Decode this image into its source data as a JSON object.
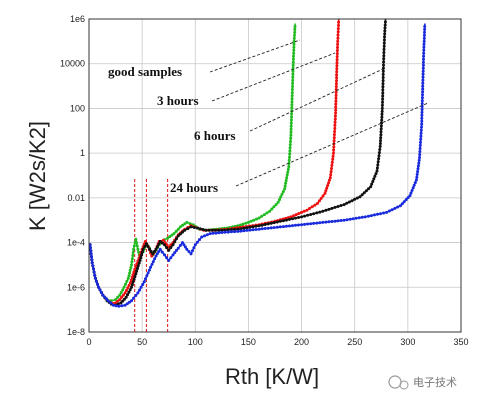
{
  "chart_data": {
    "type": "line",
    "xlabel": "Rth [K/W]",
    "ylabel": "K [W2s/K2]",
    "xlim": [
      0,
      350
    ],
    "ylim_log10": [
      -8,
      6
    ],
    "y_scale": "log",
    "grid": true,
    "x_ticks": [
      "0",
      "50",
      "100",
      "150",
      "200",
      "250",
      "300",
      "350"
    ],
    "y_ticks": [
      "1e-8",
      "1e-6",
      "1e-4",
      "0.01",
      "1",
      "100",
      "10000",
      "1e6"
    ],
    "annotations": [
      "good samples",
      "3 hours",
      "6 hours",
      "24 hours"
    ],
    "vlines_x": [
      43,
      54,
      74
    ],
    "series": [
      {
        "label": "good samples",
        "color": "#22bb22",
        "points": [
          [
            1,
            -4.1
          ],
          [
            3,
            -4.9
          ],
          [
            6,
            -5.6
          ],
          [
            9,
            -6.0
          ],
          [
            13,
            -6.35
          ],
          [
            17,
            -6.55
          ],
          [
            21,
            -6.6
          ],
          [
            25,
            -6.55
          ],
          [
            29,
            -6.35
          ],
          [
            33,
            -6.0
          ],
          [
            37,
            -5.6
          ],
          [
            40,
            -5.0
          ],
          [
            42,
            -4.3
          ],
          [
            44,
            -3.85
          ],
          [
            46,
            -4.3
          ],
          [
            48,
            -4.7
          ],
          [
            51,
            -4.4
          ],
          [
            54,
            -4.05
          ],
          [
            57,
            -4.25
          ],
          [
            60,
            -4.55
          ],
          [
            63,
            -4.35
          ],
          [
            68,
            -3.95
          ],
          [
            74,
            -3.8
          ],
          [
            80,
            -3.6
          ],
          [
            86,
            -3.3
          ],
          [
            92,
            -3.1
          ],
          [
            98,
            -3.2
          ],
          [
            104,
            -3.4
          ],
          [
            110,
            -3.45
          ],
          [
            120,
            -3.4
          ],
          [
            130,
            -3.35
          ],
          [
            140,
            -3.25
          ],
          [
            150,
            -3.1
          ],
          [
            160,
            -2.9
          ],
          [
            170,
            -2.6
          ],
          [
            178,
            -2.2
          ],
          [
            184,
            -1.6
          ],
          [
            188,
            -0.6
          ],
          [
            190,
            0.8
          ],
          [
            191,
            2.3
          ],
          [
            192,
            3.8
          ],
          [
            193,
            5.0
          ],
          [
            194,
            5.8
          ]
        ]
      },
      {
        "label": "3 hours",
        "color": "#ee1111",
        "points": [
          [
            1,
            -4.1
          ],
          [
            3,
            -4.9
          ],
          [
            6,
            -5.6
          ],
          [
            9,
            -6.0
          ],
          [
            13,
            -6.35
          ],
          [
            17,
            -6.6
          ],
          [
            21,
            -6.7
          ],
          [
            25,
            -6.7
          ],
          [
            29,
            -6.55
          ],
          [
            34,
            -6.25
          ],
          [
            39,
            -5.8
          ],
          [
            43,
            -5.2
          ],
          [
            47,
            -4.7
          ],
          [
            50,
            -4.3
          ],
          [
            53,
            -3.95
          ],
          [
            56,
            -4.2
          ],
          [
            59,
            -4.6
          ],
          [
            62,
            -4.4
          ],
          [
            66,
            -3.95
          ],
          [
            70,
            -3.9
          ],
          [
            75,
            -4.2
          ],
          [
            79,
            -4.0
          ],
          [
            84,
            -3.65
          ],
          [
            90,
            -3.4
          ],
          [
            96,
            -3.25
          ],
          [
            102,
            -3.35
          ],
          [
            108,
            -3.45
          ],
          [
            118,
            -3.45
          ],
          [
            130,
            -3.4
          ],
          [
            145,
            -3.3
          ],
          [
            160,
            -3.2
          ],
          [
            175,
            -3.05
          ],
          [
            190,
            -2.85
          ],
          [
            205,
            -2.55
          ],
          [
            215,
            -2.25
          ],
          [
            222,
            -1.8
          ],
          [
            227,
            -1.1
          ],
          [
            230,
            0.0
          ],
          [
            232,
            1.8
          ],
          [
            233,
            3.5
          ],
          [
            234,
            5.0
          ],
          [
            235,
            6.0
          ]
        ]
      },
      {
        "label": "6 hours",
        "color": "#111111",
        "points": [
          [
            1,
            -4.1
          ],
          [
            3,
            -4.9
          ],
          [
            6,
            -5.6
          ],
          [
            9,
            -6.0
          ],
          [
            13,
            -6.35
          ],
          [
            17,
            -6.6
          ],
          [
            21,
            -6.75
          ],
          [
            25,
            -6.8
          ],
          [
            30,
            -6.7
          ],
          [
            35,
            -6.45
          ],
          [
            40,
            -6.0
          ],
          [
            44,
            -5.4
          ],
          [
            48,
            -4.8
          ],
          [
            51,
            -4.3
          ],
          [
            54,
            -4.05
          ],
          [
            57,
            -4.3
          ],
          [
            60,
            -4.5
          ],
          [
            63,
            -4.3
          ],
          [
            67,
            -3.95
          ],
          [
            71,
            -4.1
          ],
          [
            75,
            -4.35
          ],
          [
            79,
            -4.1
          ],
          [
            84,
            -3.7
          ],
          [
            90,
            -3.45
          ],
          [
            96,
            -3.3
          ],
          [
            102,
            -3.35
          ],
          [
            110,
            -3.45
          ],
          [
            125,
            -3.45
          ],
          [
            140,
            -3.4
          ],
          [
            160,
            -3.25
          ],
          [
            180,
            -3.05
          ],
          [
            200,
            -2.85
          ],
          [
            220,
            -2.6
          ],
          [
            240,
            -2.3
          ],
          [
            255,
            -1.95
          ],
          [
            265,
            -1.5
          ],
          [
            271,
            -0.8
          ],
          [
            274,
            0.3
          ],
          [
            276,
            2.0
          ],
          [
            277,
            3.8
          ],
          [
            278,
            5.2
          ],
          [
            279,
            6.0
          ]
        ]
      },
      {
        "label": "24 hours",
        "color": "#1a2bdd",
        "points": [
          [
            1,
            -4.1
          ],
          [
            3,
            -4.9
          ],
          [
            6,
            -5.6
          ],
          [
            9,
            -6.0
          ],
          [
            13,
            -6.35
          ],
          [
            18,
            -6.6
          ],
          [
            23,
            -6.8
          ],
          [
            28,
            -6.85
          ],
          [
            34,
            -6.8
          ],
          [
            40,
            -6.6
          ],
          [
            46,
            -6.25
          ],
          [
            52,
            -5.75
          ],
          [
            58,
            -5.1
          ],
          [
            63,
            -4.6
          ],
          [
            67,
            -4.3
          ],
          [
            71,
            -4.55
          ],
          [
            75,
            -4.8
          ],
          [
            79,
            -4.55
          ],
          [
            84,
            -4.25
          ],
          [
            88,
            -4.0
          ],
          [
            92,
            -4.3
          ],
          [
            96,
            -4.5
          ],
          [
            100,
            -4.1
          ],
          [
            106,
            -3.75
          ],
          [
            114,
            -3.6
          ],
          [
            125,
            -3.55
          ],
          [
            140,
            -3.5
          ],
          [
            160,
            -3.4
          ],
          [
            180,
            -3.3
          ],
          [
            200,
            -3.2
          ],
          [
            220,
            -3.1
          ],
          [
            240,
            -3.0
          ],
          [
            260,
            -2.85
          ],
          [
            280,
            -2.65
          ],
          [
            293,
            -2.35
          ],
          [
            302,
            -1.9
          ],
          [
            308,
            -1.2
          ],
          [
            311,
            -0.2
          ],
          [
            313,
            1.3
          ],
          [
            314,
            3.0
          ],
          [
            315,
            4.6
          ],
          [
            316,
            5.8
          ]
        ]
      }
    ]
  },
  "watermark": "电子技术"
}
